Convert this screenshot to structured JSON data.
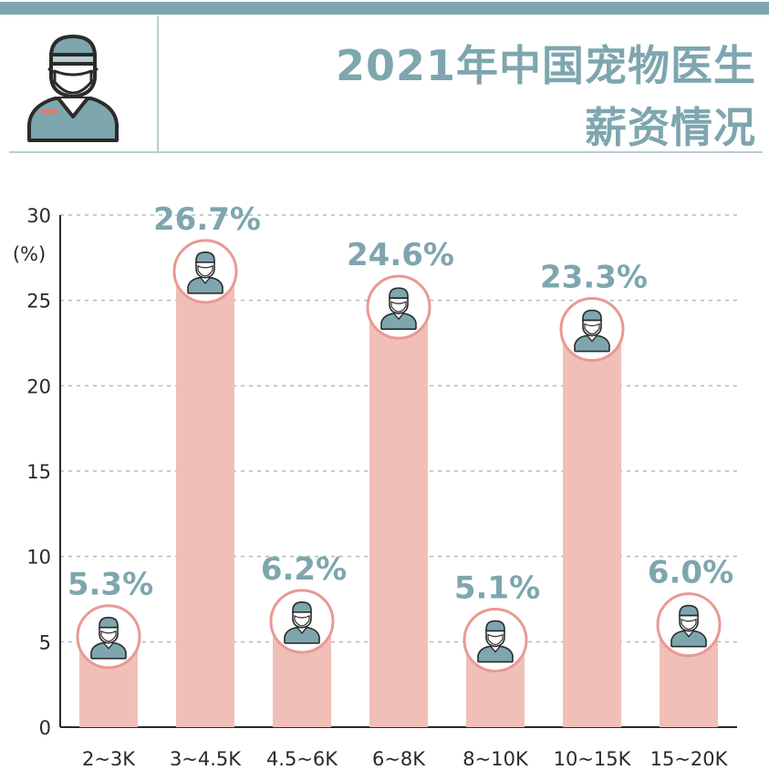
{
  "header": {
    "title_line1": "2021年中国宠物医生",
    "title_line2": "薪资情况",
    "icon": "pet-doctor-icon"
  },
  "colors": {
    "accent": "#7ea6ae",
    "bar": "#f0bfb8",
    "badge_ring": "#e79a92",
    "grid": "#b8b8b8"
  },
  "chart_data": {
    "type": "bar",
    "ylabel": "(%)",
    "ylim": [
      0,
      30
    ],
    "yticks": [
      0,
      5,
      10,
      15,
      20,
      25,
      30
    ],
    "grid": true,
    "categories": [
      "2~3K",
      "3~4.5K",
      "4.5~6K",
      "6~8K",
      "8~10K",
      "10~15K",
      "15~20K"
    ],
    "values": [
      5.3,
      26.7,
      6.2,
      24.6,
      5.1,
      23.3,
      6.0
    ],
    "value_labels": [
      "5.3%",
      "26.7%",
      "6.2%",
      "24.6%",
      "5.1%",
      "23.3%",
      "6.0%"
    ]
  }
}
